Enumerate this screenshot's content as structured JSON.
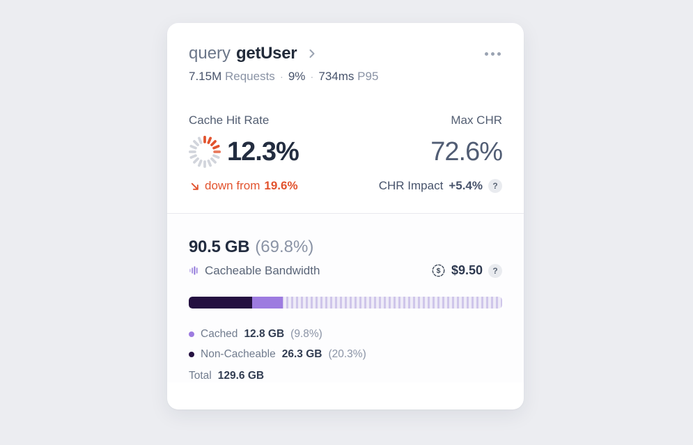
{
  "header": {
    "title_prefix": "query",
    "title_name": "getUser",
    "dot": "·",
    "stats": [
      {
        "value": "7.15M",
        "label": "Requests"
      },
      {
        "value": "9%",
        "label": ""
      },
      {
        "value": "734ms",
        "label": "P95"
      }
    ]
  },
  "chr": {
    "label": "Cache Hit Rate",
    "value": "12.3%",
    "trend_text": "down from",
    "trend_value": "19.6%",
    "max_label": "Max CHR",
    "max_value": "72.6%",
    "impact_label": "CHR Impact",
    "impact_value": "+5.4%",
    "help": "?",
    "gauge": {
      "ticks": 16,
      "filled": 4,
      "partial": 1,
      "color_filled": "#e2532e",
      "color_partial": "#e8795c",
      "color_empty": "#d2d5dc"
    }
  },
  "bandwidth": {
    "amount": "90.5 GB",
    "percent": "(69.8%)",
    "label": "Cacheable Bandwidth",
    "cost": "$9.50",
    "dollar": "$",
    "help": "?",
    "bar": {
      "type": "bar",
      "segments": [
        {
          "name": "Non-Cacheable",
          "pct": 20.3,
          "color": "#241040"
        },
        {
          "name": "Cached",
          "pct": 9.8,
          "color": "#9d7be0"
        }
      ],
      "remainder_style": "striped-light-purple"
    },
    "legend": [
      {
        "name": "Cached",
        "value": "12.8 GB",
        "percent": "(9.8%)",
        "color": "#9d7be0"
      },
      {
        "name": "Non-Cacheable",
        "value": "26.3 GB",
        "percent": "(20.3%)",
        "color": "#241040"
      }
    ],
    "total_label": "Total",
    "total_value": "129.6 GB"
  }
}
